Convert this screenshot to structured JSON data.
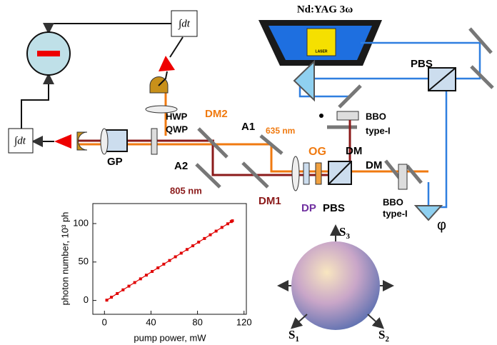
{
  "labels": {
    "laser": "Nd:YAG 3ω",
    "laser_small": "LASER",
    "pbs_top": "PBS",
    "bbo1": "BBO",
    "bbo1_type": "type-I",
    "dm2": "DM2",
    "a1": "A1",
    "nm635": "635 nm",
    "hwp": "HWP",
    "qwp": "QWP",
    "gp": "GP",
    "a2": "A2",
    "nm805": "805 nm",
    "dm1": "DM1",
    "og": "OG",
    "dm_a": "DM",
    "dm_b": "DM",
    "dp": "DP",
    "pbs_bottom": "PBS",
    "bbo2": "BBO",
    "bbo2_type": "type-I",
    "phi": "φ",
    "int1": "∫dt",
    "int2": "∫dt",
    "s3": {
      "label": "S",
      "sub": "3"
    },
    "s1": {
      "label": "S",
      "sub": "1"
    },
    "s2": {
      "label": "S",
      "sub": "2"
    }
  },
  "chart_data": {
    "type": "line",
    "x_label": "pump power, mW",
    "y_label": "photon number, 10³ ph",
    "x": [
      2,
      6,
      11,
      16,
      21,
      26,
      31,
      36,
      41,
      46,
      51,
      56,
      61,
      66,
      71,
      76,
      81,
      86,
      91,
      96,
      101,
      106,
      109,
      110
    ],
    "series": [
      {
        "color": "#e00000",
        "values": [
          0.4,
          4.2,
          9,
          13.8,
          18.6,
          23.3,
          28.1,
          32.9,
          37.7,
          42.4,
          47.2,
          52,
          56.8,
          61.5,
          66.3,
          71.1,
          75.9,
          80.6,
          85.4,
          90.2,
          95,
          99.7,
          102.6,
          103.6
        ]
      }
    ],
    "xlim": [
      -10,
      122
    ],
    "ylim": [
      -18,
      126
    ],
    "xticks": [
      0,
      40,
      80,
      120
    ],
    "yticks": [
      0,
      50,
      100
    ]
  }
}
